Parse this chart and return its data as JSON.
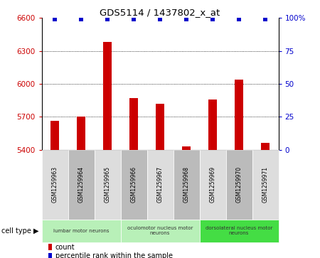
{
  "title": "GDS5114 / 1437802_x_at",
  "samples": [
    "GSM1259963",
    "GSM1259964",
    "GSM1259965",
    "GSM1259966",
    "GSM1259967",
    "GSM1259968",
    "GSM1259969",
    "GSM1259970",
    "GSM1259971"
  ],
  "counts": [
    5660,
    5700,
    6380,
    5870,
    5820,
    5430,
    5860,
    6040,
    5460
  ],
  "percentiles": [
    99,
    99,
    99,
    99,
    99,
    99,
    99,
    99,
    99
  ],
  "ylim_left": [
    5400,
    6600
  ],
  "yticks_left": [
    5400,
    5700,
    6000,
    6300,
    6600
  ],
  "ylim_right": [
    0,
    100
  ],
  "yticks_right": [
    0,
    25,
    50,
    75,
    100
  ],
  "bar_color": "#cc0000",
  "scatter_color": "#0000cc",
  "grid_color": "#000000",
  "cell_types": [
    {
      "label": "lumbar motor neurons",
      "start": 0,
      "end": 3,
      "color": "#b8f0b8"
    },
    {
      "label": "oculomotor nucleus motor\nneurons",
      "start": 3,
      "end": 6,
      "color": "#b8f0b8"
    },
    {
      "label": "dorsolateral nucleus motor\nneurons",
      "start": 6,
      "end": 9,
      "color": "#44dd44"
    }
  ],
  "cell_type_label": "cell type",
  "legend_count_label": "count",
  "legend_percentile_label": "percentile rank within the sample",
  "bg_color": "#ffffff",
  "tick_label_color_left": "#cc0000",
  "tick_label_color_right": "#0000cc",
  "sample_box_color_light": "#dddddd",
  "sample_box_color_dark": "#bbbbbb"
}
